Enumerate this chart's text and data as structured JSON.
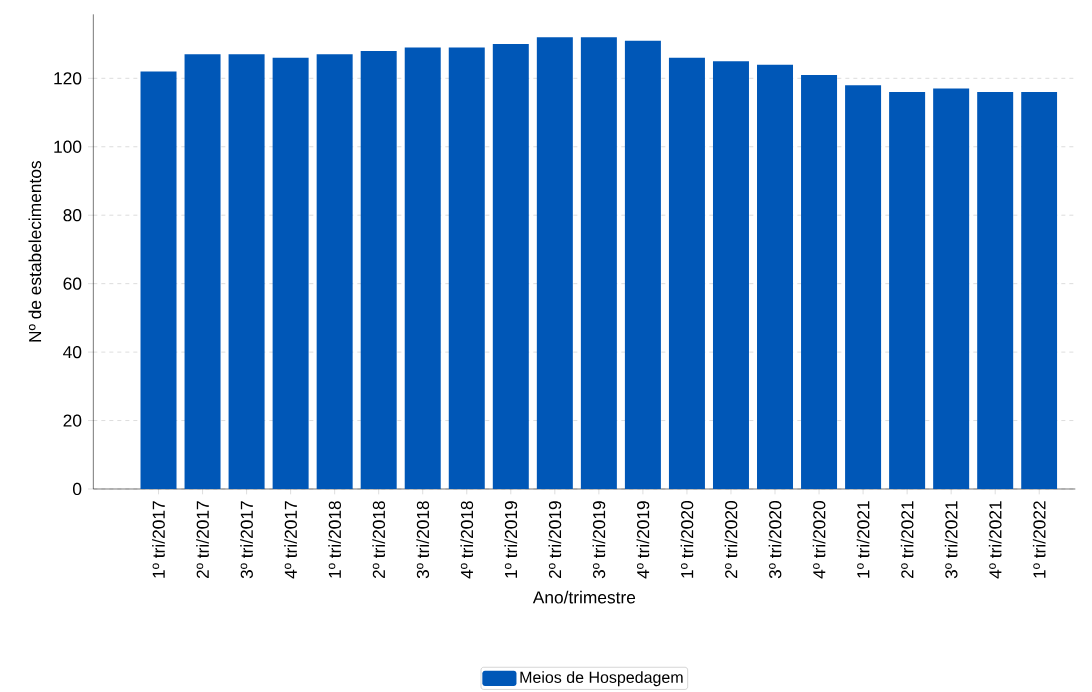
{
  "chart_data": {
    "type": "bar",
    "xlabel": "Ano/trimestre",
    "ylabel": "Nº de estabelecimentos",
    "categories": [
      "1º tri/2017",
      "2º tri/2017",
      "3º tri/2017",
      "4º tri/2017",
      "1º tri/2018",
      "2º tri/2018",
      "3º tri/2018",
      "4º tri/2018",
      "1º tri/2019",
      "2º tri/2019",
      "3º tri/2019",
      "4º tri/2019",
      "1º tri/2020",
      "2º tri/2020",
      "3º tri/2020",
      "4º tri/2020",
      "1º tri/2021",
      "2º tri/2021",
      "3º tri/2021",
      "4º tri/2021",
      "1º tri/2022"
    ],
    "series": [
      {
        "name": "Meios de Hospedagem",
        "color": "#0057b7",
        "values": [
          122,
          127,
          127,
          126,
          127,
          128,
          129,
          129,
          130,
          132,
          132,
          131,
          126,
          125,
          124,
          121,
          118,
          116,
          117,
          116,
          116
        ]
      }
    ],
    "ylim": [
      0,
      138.7
    ],
    "yticks": [
      0,
      20,
      40,
      60,
      80,
      100,
      120
    ],
    "grid": "y",
    "legend": "bottom"
  }
}
